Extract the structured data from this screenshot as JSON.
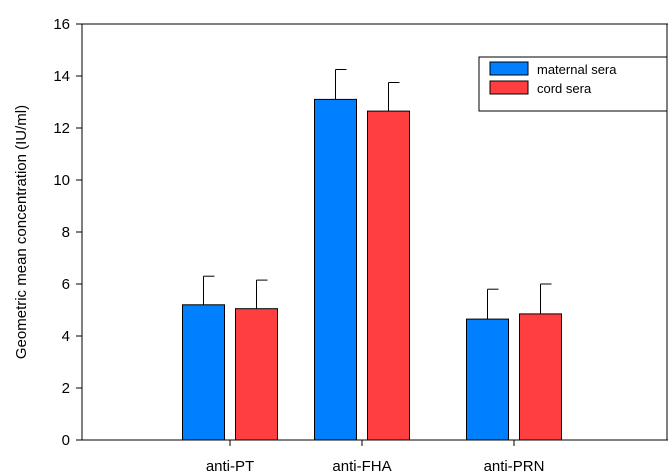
{
  "chart_data": {
    "type": "bar",
    "title": "",
    "xlabel": "",
    "ylabel": "Geometric mean concentration (IU/ml)",
    "categories": [
      "anti-PT",
      "anti-FHA",
      "anti-PRN"
    ],
    "ylim": [
      0,
      16
    ],
    "yticks": [
      0,
      2,
      4,
      6,
      8,
      10,
      12,
      14,
      16
    ],
    "grid": false,
    "legend_position": "top-right",
    "series": [
      {
        "name": "maternal sera",
        "color": "#0080ff",
        "values": [
          5.2,
          13.1,
          4.65
        ],
        "error_upper": [
          6.3,
          14.25,
          5.8
        ]
      },
      {
        "name": "cord sera",
        "color": "#ff3f3f",
        "values": [
          5.05,
          12.65,
          4.85
        ],
        "error_upper": [
          6.15,
          13.75,
          6.0
        ]
      }
    ]
  }
}
